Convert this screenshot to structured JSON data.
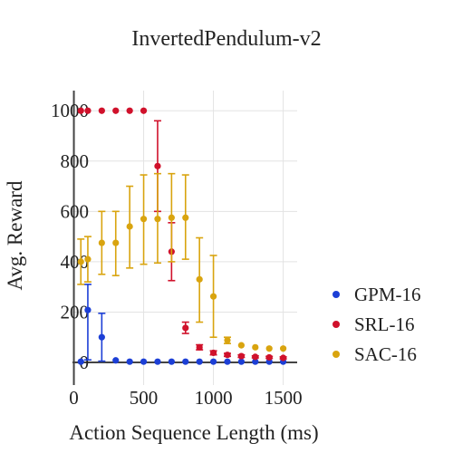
{
  "chart_data": {
    "type": "scatter",
    "title": "InvertedPendulum-v2",
    "xlabel": "Action Sequence Length (ms)",
    "ylabel": "Avg. Reward",
    "xlim": [
      -10,
      1600
    ],
    "ylim": [
      -90,
      1080
    ],
    "xticks": [
      0,
      500,
      1000,
      1500
    ],
    "yticks": [
      0,
      200,
      400,
      600,
      800,
      1000
    ],
    "grid": true,
    "legend": "right",
    "series": [
      {
        "name": "GPM-16",
        "color": "#1c3fd6",
        "points": [
          {
            "x": 50,
            "y": 3,
            "lo": 3,
            "hi": 3
          },
          {
            "x": 100,
            "y": 208,
            "lo": 10,
            "hi": 310
          },
          {
            "x": 200,
            "y": 100,
            "lo": 5,
            "hi": 195
          },
          {
            "x": 300,
            "y": 8,
            "lo": 8,
            "hi": 8
          },
          {
            "x": 400,
            "y": 3,
            "lo": 3,
            "hi": 3
          },
          {
            "x": 500,
            "y": 3,
            "lo": 3,
            "hi": 3
          },
          {
            "x": 600,
            "y": 3,
            "lo": 3,
            "hi": 3
          },
          {
            "x": 700,
            "y": 3,
            "lo": 3,
            "hi": 3
          },
          {
            "x": 800,
            "y": 3,
            "lo": 3,
            "hi": 3
          },
          {
            "x": 900,
            "y": 3,
            "lo": 3,
            "hi": 3
          },
          {
            "x": 1000,
            "y": 3,
            "lo": 3,
            "hi": 3
          },
          {
            "x": 1100,
            "y": 3,
            "lo": 3,
            "hi": 3
          },
          {
            "x": 1200,
            "y": 3,
            "lo": 3,
            "hi": 3
          },
          {
            "x": 1300,
            "y": 3,
            "lo": 3,
            "hi": 3
          },
          {
            "x": 1400,
            "y": 3,
            "lo": 3,
            "hi": 3
          },
          {
            "x": 1500,
            "y": 3,
            "lo": 3,
            "hi": 3
          }
        ]
      },
      {
        "name": "SRL-16",
        "color": "#d0112b",
        "points": [
          {
            "x": 50,
            "y": 1000,
            "lo": 1000,
            "hi": 1000
          },
          {
            "x": 100,
            "y": 1000,
            "lo": 1000,
            "hi": 1000
          },
          {
            "x": 200,
            "y": 1000,
            "lo": 1000,
            "hi": 1000
          },
          {
            "x": 300,
            "y": 1000,
            "lo": 1000,
            "hi": 1000
          },
          {
            "x": 400,
            "y": 1000,
            "lo": 1000,
            "hi": 1000
          },
          {
            "x": 500,
            "y": 1000,
            "lo": 1000,
            "hi": 1000
          },
          {
            "x": 600,
            "y": 780,
            "lo": 600,
            "hi": 960
          },
          {
            "x": 700,
            "y": 440,
            "lo": 325,
            "hi": 555
          },
          {
            "x": 800,
            "y": 137,
            "lo": 115,
            "hi": 160
          },
          {
            "x": 900,
            "y": 60,
            "lo": 50,
            "hi": 70
          },
          {
            "x": 1000,
            "y": 38,
            "lo": 30,
            "hi": 46
          },
          {
            "x": 1100,
            "y": 30,
            "lo": 24,
            "hi": 36
          },
          {
            "x": 1200,
            "y": 25,
            "lo": 20,
            "hi": 30
          },
          {
            "x": 1300,
            "y": 22,
            "lo": 18,
            "hi": 26
          },
          {
            "x": 1400,
            "y": 20,
            "lo": 16,
            "hi": 24
          },
          {
            "x": 1500,
            "y": 18,
            "lo": 14,
            "hi": 22
          }
        ]
      },
      {
        "name": "SAC-16",
        "color": "#d9a40f",
        "points": [
          {
            "x": 50,
            "y": 400,
            "lo": 310,
            "hi": 490
          },
          {
            "x": 100,
            "y": 410,
            "lo": 320,
            "hi": 500
          },
          {
            "x": 200,
            "y": 475,
            "lo": 350,
            "hi": 600
          },
          {
            "x": 300,
            "y": 475,
            "lo": 345,
            "hi": 600
          },
          {
            "x": 400,
            "y": 540,
            "lo": 375,
            "hi": 700
          },
          {
            "x": 500,
            "y": 570,
            "lo": 390,
            "hi": 745
          },
          {
            "x": 600,
            "y": 570,
            "lo": 395,
            "hi": 750
          },
          {
            "x": 700,
            "y": 575,
            "lo": 400,
            "hi": 750
          },
          {
            "x": 800,
            "y": 575,
            "lo": 410,
            "hi": 745
          },
          {
            "x": 900,
            "y": 330,
            "lo": 160,
            "hi": 495
          },
          {
            "x": 1000,
            "y": 262,
            "lo": 100,
            "hi": 425
          },
          {
            "x": 1100,
            "y": 88,
            "lo": 75,
            "hi": 100
          },
          {
            "x": 1200,
            "y": 68,
            "lo": 68,
            "hi": 68
          },
          {
            "x": 1300,
            "y": 60,
            "lo": 60,
            "hi": 60
          },
          {
            "x": 1400,
            "y": 55,
            "lo": 55,
            "hi": 55
          },
          {
            "x": 1500,
            "y": 55,
            "lo": 55,
            "hi": 55
          }
        ]
      }
    ]
  }
}
